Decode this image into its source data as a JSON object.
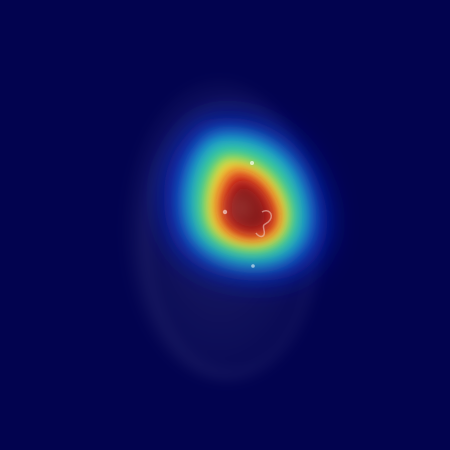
{
  "image": {
    "description_tags": [
      "heatmap-overlay",
      "microscopy-style"
    ],
    "colors": {
      "background": "#02034f",
      "cell_ghost": "#c7cce8",
      "heat_outer": "#0a2fd6",
      "heat_cyan": "#19c9e6",
      "heat_green": "#49d36d",
      "heat_yellow": "#f6e53a",
      "heat_orange": "#f08a2b",
      "heat_red": "#d21b1b",
      "heat_core": "#7a1a1a",
      "highlight": "#f3d2c6"
    }
  }
}
